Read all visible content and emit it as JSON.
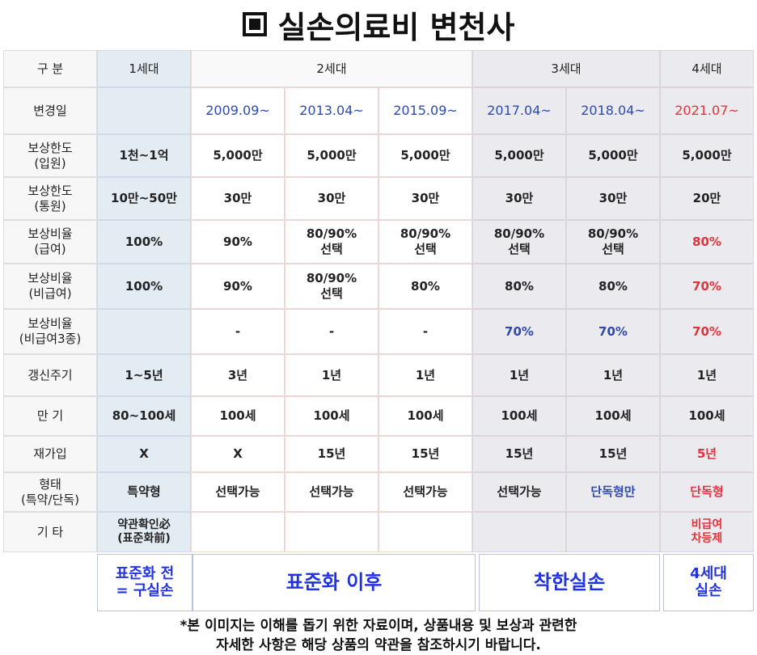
{
  "title": "실손의료비 변천사",
  "generations": [
    "1세대",
    "2세대",
    "3세대",
    "4세대"
  ],
  "row_labels": [
    "구 분",
    "변경일",
    "보상한도\n(입원)",
    "보상한도\n(통원)",
    "보상비율\n(급여)",
    "보상비율\n(비급여)",
    "보상비율\n(비급여3종)",
    "갱신주기",
    "만 기",
    "재가입",
    "형태\n(특약/단독)",
    "기 타"
  ],
  "columns": [
    {
      "date": "",
      "values": [
        "1천~1억",
        "10만~50만",
        "100%",
        "100%",
        "",
        "1~5년",
        "80~100세",
        "X",
        "특약형",
        "약관확인必\n(표준화前)"
      ]
    },
    {
      "date": "2009.09~",
      "values": [
        "5,000만",
        "30만",
        "90%",
        "90%",
        "-",
        "3년",
        "100세",
        "X",
        "선택가능",
        ""
      ]
    },
    {
      "date": "2013.04~",
      "values": [
        "5,000만",
        "30만",
        "80/90%\n선택",
        "80/90%\n선택",
        "-",
        "1년",
        "100세",
        "15년",
        "선택가능",
        ""
      ]
    },
    {
      "date": "2015.09~",
      "values": [
        "5,000만",
        "30만",
        "80/90%\n선택",
        "80%",
        "-",
        "1년",
        "100세",
        "15년",
        "선택가능",
        ""
      ]
    },
    {
      "date": "2017.04~",
      "values": [
        "5,000만",
        "30만",
        "80/90%\n선택",
        "80%",
        "70%",
        "1년",
        "100세",
        "15년",
        "선택가능",
        ""
      ]
    },
    {
      "date": "2018.04~",
      "values": [
        "5,000만",
        "30만",
        "80/90%\n선택",
        "80%",
        "70%",
        "1년",
        "100세",
        "15년",
        "단독형만",
        ""
      ]
    },
    {
      "date": "2021.07~",
      "values": [
        "5,000만",
        "20만",
        "80%",
        "70%",
        "70%",
        "1년",
        "100세",
        "5년",
        "단독형",
        "비급여\n차등제"
      ]
    }
  ],
  "footer": [
    "표준화 전\n= 구실손",
    "표준화 이후",
    "착한실손",
    "4세대\n실손"
  ],
  "disclaimer": "*본 이미지는 이해를 돕기 위한 자료이며, 상품내용 및 보상과 관련한\n자세한 사항은 해당 상품의 약관을 참조하시기 바랍니다.",
  "colors": {
    "blue_text": "#2f4aa8",
    "red_text": "#e0333c",
    "footer_text": "#2233dd"
  }
}
